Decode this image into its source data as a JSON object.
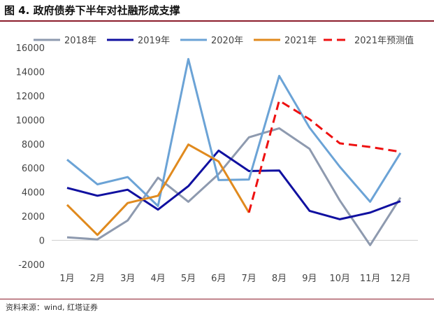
{
  "figure": {
    "title": "图 4. 政府债券下半年对社融形成支撑",
    "source": "资料来源：wind, 红塔证券"
  },
  "chart_data": {
    "type": "line",
    "title": "图 4. 政府债券下半年对社融形成支撑",
    "categories": [
      "1月",
      "2月",
      "3月",
      "4月",
      "5月",
      "6月",
      "7月",
      "8月",
      "9月",
      "10月",
      "11月",
      "12月"
    ],
    "ylim": [
      -2000,
      16000
    ],
    "yticks": [
      "-2000",
      "0",
      "2000",
      "4000",
      "6000",
      "8000",
      "10000",
      "12000",
      "14000",
      "16000"
    ],
    "ytick_values": [
      -2000,
      0,
      2000,
      4000,
      6000,
      8000,
      10000,
      12000,
      14000,
      16000
    ],
    "legend_position": "top",
    "grid": false,
    "series": [
      {
        "name": "2018年",
        "color": "#8e9aaf",
        "dash": false,
        "values": [
          250,
          80,
          1650,
          5200,
          3200,
          5500,
          8550,
          9300,
          7600,
          3300,
          -400,
          3550
        ]
      },
      {
        "name": "2019年",
        "color": "#1010a0",
        "dash": false,
        "values": [
          4350,
          3700,
          4200,
          2550,
          4500,
          7450,
          5750,
          5800,
          2450,
          1750,
          2300,
          3250
        ]
      },
      {
        "name": "2020年",
        "color": "#6ba3d6",
        "dash": false,
        "values": [
          6700,
          4650,
          5250,
          2850,
          15050,
          5000,
          5050,
          13650,
          9350,
          6100,
          3200,
          7250
        ]
      },
      {
        "name": "2021年",
        "color": "#e08a1e",
        "dash": false,
        "values": [
          2950,
          450,
          3100,
          3700,
          7950,
          6550,
          2300,
          null,
          null,
          null,
          null,
          null
        ]
      },
      {
        "name": "2021年预测值",
        "color": "#ee1111",
        "dash": true,
        "values": [
          null,
          null,
          null,
          null,
          null,
          null,
          2300,
          11600,
          10050,
          8050,
          7750,
          7350
        ]
      }
    ]
  }
}
